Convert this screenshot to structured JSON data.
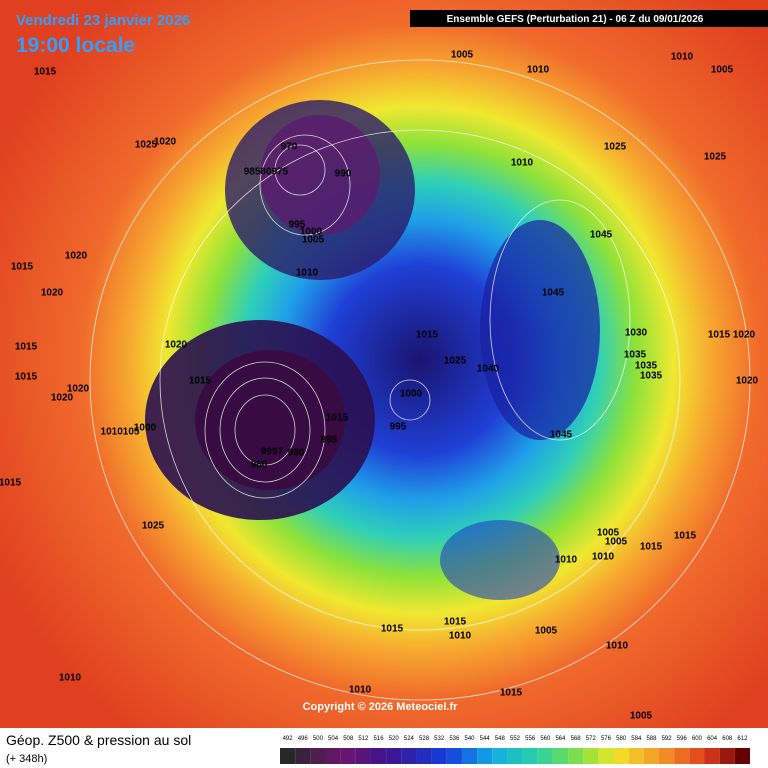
{
  "header": {
    "date": "Vendredi 23 janvier 2026",
    "time": "19:00 locale",
    "model": "Ensemble GEFS  (Perturbation 21)  -  06 Z du 09/01/2026"
  },
  "footer": {
    "title": "Géop. Z500 & pression au sol",
    "lead": "(+ 348h)",
    "copyright": "Copyright © 2026 Meteociel.fr"
  },
  "legend": {
    "levels": [
      492,
      496,
      500,
      504,
      508,
      512,
      516,
      520,
      524,
      528,
      532,
      536,
      540,
      544,
      548,
      552,
      556,
      560,
      564,
      568,
      572,
      576,
      580,
      584,
      588,
      592,
      596,
      600,
      604,
      608,
      612
    ]
  },
  "isobar_labels": [
    "1015",
    "1005",
    "1010",
    "1010",
    "1005",
    "1025",
    "1020",
    "970",
    "98580975",
    "990",
    "1010",
    "1025",
    "1025",
    "995",
    "1000",
    "1005",
    "1020",
    "1015",
    "1010",
    "1045",
    "1020",
    "1045",
    "1015",
    "1030",
    "1015",
    "1020",
    "1020",
    "1015",
    "1035",
    "1025",
    "1035",
    "1040",
    "1015",
    "1015",
    "1035",
    "1020",
    "1020",
    "1000",
    "1020",
    "1015",
    "995",
    "1045",
    "1010105",
    "1000",
    "995",
    "9997",
    "980",
    "960",
    "1015",
    "1025",
    "1005",
    "1005",
    "1015",
    "1015",
    "1010",
    "1010",
    "1015",
    "1010",
    "1015",
    "1005",
    "1010",
    "1010",
    "1010",
    "1015",
    "1005"
  ]
}
